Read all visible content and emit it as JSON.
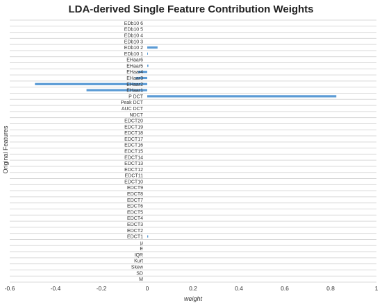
{
  "chart_data": {
    "type": "bar",
    "orientation": "horizontal",
    "title": "LDA-derived Single Feature Contribution Weights",
    "xlabel": "weight",
    "ylabel": "Original Features",
    "xlim": [
      -0.6,
      1
    ],
    "xticks": [
      "-0.6",
      "-0.4",
      "-0.2",
      "0",
      "0.2",
      "0.4",
      "0.6",
      "0.8",
      "1"
    ],
    "xtick_values": [
      -0.6,
      -0.4,
      -0.2,
      0,
      0.2,
      0.4,
      0.6,
      0.8,
      1
    ],
    "grid": true,
    "bar_color": "#5b9bd5",
    "categories": [
      "EDb10 6",
      "EDb10 5",
      "EDb10 4",
      "EDb10 3",
      "EDb10 2",
      "EDb10 1",
      "EHaar6",
      "EHaar5",
      "EHaar4",
      "EHaar3",
      "EHaar2",
      "EHaar1",
      "P DCT",
      "Peak DCT",
      "AUC DCT",
      "NDCT",
      "EDCT20",
      "EDCT19",
      "EDCT18",
      "EDCT17",
      "EDCT16",
      "EDCT15",
      "EDCT14",
      "EDCT13",
      "EDCT12",
      "EDCT11",
      "EDCT10",
      "EDCT9",
      "EDCT8",
      "EDCT7",
      "EDCT6",
      "EDCT5",
      "EDCT4",
      "EDCT3",
      "EDCT2",
      "EDCT1",
      "μ",
      "E",
      "IQR",
      "Kurt",
      "Skew",
      "SD",
      "M"
    ],
    "values": [
      0,
      0,
      0,
      0,
      0.045,
      0.003,
      0,
      0.005,
      -0.04,
      -0.05,
      -0.49,
      -0.265,
      0.825,
      0,
      0,
      0,
      0,
      0,
      0,
      0,
      0,
      0,
      0,
      0,
      0,
      0,
      0,
      0,
      0,
      0,
      0,
      0,
      0,
      0,
      0,
      0.004,
      0,
      0,
      0,
      0,
      0,
      0,
      0
    ]
  }
}
